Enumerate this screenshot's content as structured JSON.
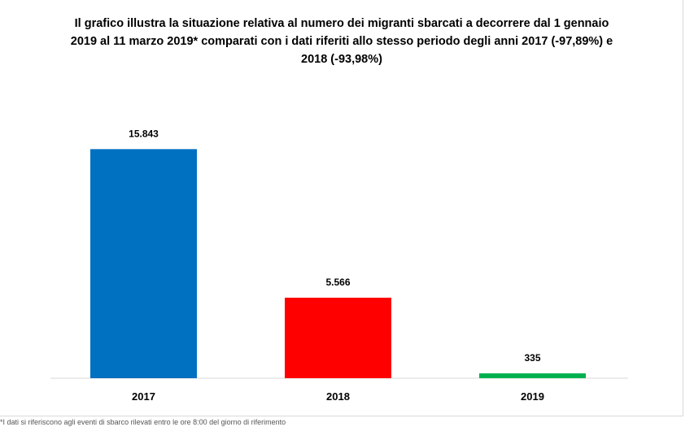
{
  "chart_data": {
    "type": "bar",
    "title": "Il grafico illustra la situazione relativa al numero dei migranti sbarcati a decorrere dal 1 gennaio 2019 al 11 marzo 2019* comparati con i dati riferiti allo stesso periodo degli anni 2017 (-97,89%) e 2018 (-93,98%)",
    "categories": [
      "2017",
      "2018",
      "2019"
    ],
    "values": [
      15843,
      5566,
      335
    ],
    "value_labels": [
      "15.843",
      "5.566",
      "335"
    ],
    "colors": [
      "#0070C0",
      "#FF0000",
      "#00B050"
    ],
    "ylim": [
      0,
      18000
    ],
    "grid": false,
    "legend": "none"
  },
  "footnote": "*I dati si riferiscono agli eventi di sbarco rilevati entro le ore 8:00 del giorno di riferimento"
}
